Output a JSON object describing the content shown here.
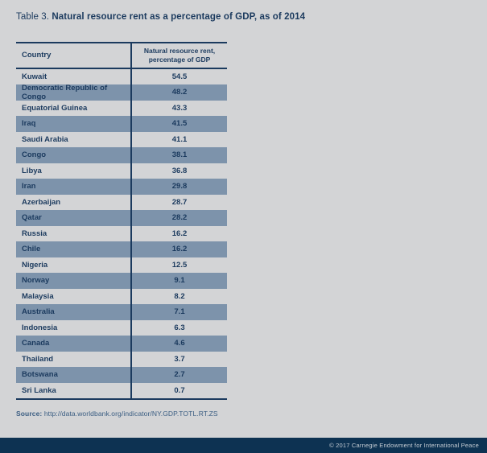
{
  "colors": {
    "page_background": "#d3d4d6",
    "navy_text": "#1b3a5e",
    "row_band_blue": "#7d93ab",
    "footer_bar": "#0d3252",
    "footer_text": "#c6cdd4",
    "source_text": "#3a5d82"
  },
  "title": {
    "prefix": "Table 3.",
    "heading": "Natural resource rent as a percentage of GDP, as of 2014"
  },
  "table": {
    "header": {
      "country": "Country",
      "value_line1": "Natural resource rent,",
      "value_line2": "percentage of GDP"
    },
    "rows": [
      {
        "country": "Kuwait",
        "value": "54.5"
      },
      {
        "country": "Democratic Republic of Congo",
        "value": "48.2"
      },
      {
        "country": "Equatorial Guinea",
        "value": "43.3"
      },
      {
        "country": "Iraq",
        "value": "41.5"
      },
      {
        "country": "Saudi Arabia",
        "value": "41.1"
      },
      {
        "country": "Congo",
        "value": "38.1"
      },
      {
        "country": "Libya",
        "value": "36.8"
      },
      {
        "country": "Iran",
        "value": "29.8"
      },
      {
        "country": "Azerbaijan",
        "value": "28.7"
      },
      {
        "country": "Qatar",
        "value": "28.2"
      },
      {
        "country": "Russia",
        "value": "16.2"
      },
      {
        "country": "Chile",
        "value": "16.2"
      },
      {
        "country": "Nigeria",
        "value": "12.5"
      },
      {
        "country": "Norway",
        "value": "9.1"
      },
      {
        "country": "Malaysia",
        "value": "8.2"
      },
      {
        "country": "Australia",
        "value": "7.1"
      },
      {
        "country": "Indonesia",
        "value": "6.3"
      },
      {
        "country": "Canada",
        "value": "4.6"
      },
      {
        "country": "Thailand",
        "value": "3.7"
      },
      {
        "country": "Botswana",
        "value": "2.7"
      },
      {
        "country": "Sri Lanka",
        "value": "0.7"
      }
    ]
  },
  "source": {
    "label": "Source:",
    "url": "http://data.worldbank.org/indicator/NY.GDP.TOTL.RT.ZS"
  },
  "footer": {
    "copyright": "© 2017 Carnegie Endowment for International Peace"
  }
}
